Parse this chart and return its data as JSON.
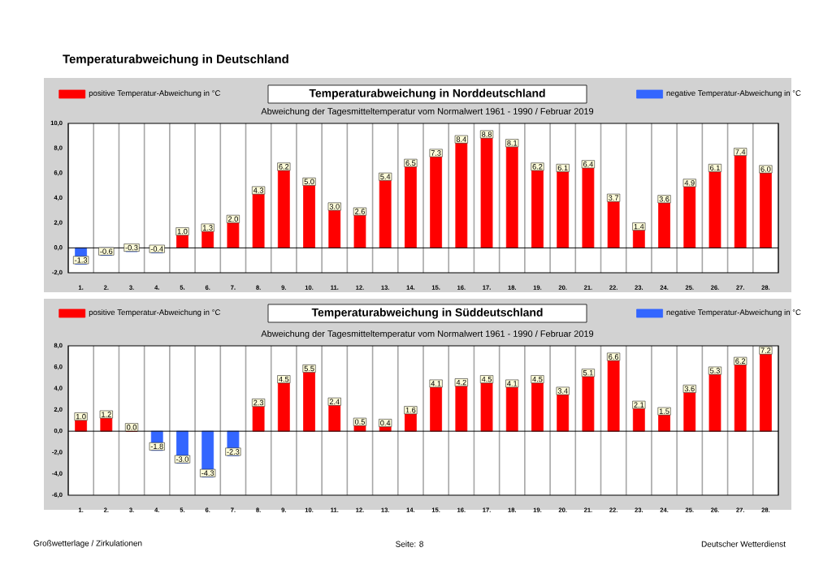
{
  "chart_data": [
    {
      "type": "bar",
      "title": "Temperaturabweichung in Norddeutschland",
      "subtitle": "Abweichung der Tagesmitteltemperatur vom Normalwert 1961 - 1990  /  Februar 2019",
      "annotations": [
        "Temperaturabweichung in Deutschland"
      ],
      "categories": [
        "1.",
        "2.",
        "3.",
        "4.",
        "5.",
        "6.",
        "7.",
        "8.",
        "9.",
        "10.",
        "11.",
        "12.",
        "13.",
        "14.",
        "15.",
        "16.",
        "17.",
        "18.",
        "19.",
        "20.",
        "21.",
        "22.",
        "23.",
        "24.",
        "25.",
        "26.",
        "27.",
        "28."
      ],
      "series": [
        {
          "name": "positive Temperatur-Abweichung in °C",
          "color": "#ff0000",
          "values": [
            null,
            null,
            null,
            null,
            1.0,
            1.3,
            2.0,
            4.3,
            6.2,
            5.0,
            3.0,
            2.6,
            5.4,
            6.5,
            7.3,
            8.4,
            8.8,
            8.1,
            6.2,
            6.1,
            6.4,
            3.7,
            1.4,
            3.6,
            4.9,
            6.1,
            7.4,
            6.0
          ],
          "value_labels": [
            null,
            null,
            null,
            null,
            "1.0",
            "1.3",
            "2.0",
            "4.3",
            "6.2",
            "5.0",
            "3.0",
            "2.6",
            "5.4",
            "6.5",
            "7.3",
            "8.4",
            "8.8",
            "8.1",
            "6.2",
            "6.1",
            "6.4",
            "3.7",
            "1.4",
            "3.6",
            "4.9",
            "6.1",
            "7.4",
            "6.0"
          ]
        },
        {
          "name": "negative Temperatur-Abweichung in °C",
          "color": "#3366ff",
          "values": [
            -1.3,
            -0.6,
            -0.3,
            -0.4,
            null,
            null,
            null,
            null,
            null,
            null,
            null,
            null,
            null,
            null,
            null,
            null,
            null,
            null,
            null,
            null,
            null,
            null,
            null,
            null,
            null,
            null,
            null,
            null
          ],
          "value_labels": [
            "-1.3",
            "-0.6",
            "-0.3",
            "-0.4",
            null,
            null,
            null,
            null,
            null,
            null,
            null,
            null,
            null,
            null,
            null,
            null,
            null,
            null,
            null,
            null,
            null,
            null,
            null,
            null,
            null,
            null,
            null,
            null
          ]
        }
      ],
      "ylim": [
        -2,
        10
      ],
      "yticks": [
        {
          "value": -2,
          "label": "-2,0"
        },
        {
          "value": 0,
          "label": "0,0"
        },
        {
          "value": 2,
          "label": "2,0"
        },
        {
          "value": 4,
          "label": "4,0"
        },
        {
          "value": 6,
          "label": "6,0"
        },
        {
          "value": 8,
          "label": "8,0"
        },
        {
          "value": 10,
          "label": "10,0"
        }
      ],
      "grid": "x",
      "legend": "top"
    },
    {
      "type": "bar",
      "title": "Temperaturabweichung in Süddeutschland",
      "subtitle": "Abweichung der Tagesmitteltemperatur vom Normalwert 1961 - 1990  /  Februar 2019",
      "annotations": [
        "Großwetterlage / Zirkulationen",
        "Seite: 8",
        "Deutscher Wetterdienst"
      ],
      "categories": [
        "1.",
        "2.",
        "3.",
        "4.",
        "5.",
        "6.",
        "7.",
        "8.",
        "9.",
        "10.",
        "11.",
        "12.",
        "13.",
        "14.",
        "15.",
        "16.",
        "17.",
        "18.",
        "19.",
        "20.",
        "21.",
        "22.",
        "23.",
        "24.",
        "25.",
        "26.",
        "27.",
        "28."
      ],
      "series": [
        {
          "name": "positive Temperatur-Abweichung in °C",
          "color": "#ff0000",
          "values": [
            1.0,
            1.2,
            0.0,
            null,
            null,
            null,
            null,
            2.3,
            4.5,
            5.5,
            2.4,
            0.5,
            0.4,
            1.6,
            4.1,
            4.2,
            4.5,
            4.1,
            4.5,
            3.4,
            5.1,
            6.6,
            2.1,
            1.5,
            3.6,
            5.3,
            6.2,
            7.2
          ],
          "value_labels": [
            "1.0",
            "1.2",
            "0.0",
            null,
            null,
            null,
            null,
            "2.3",
            "4.5",
            "5.5",
            "2.4",
            "0.5",
            "0.4",
            "1.6",
            "4.1",
            "4.2",
            "4.5",
            "4.1",
            "4.5",
            "3.4",
            "5.1",
            "6.6",
            "2.1",
            "1.5",
            "3.6",
            "5.3",
            "6.2",
            "7.2"
          ]
        },
        {
          "name": "negative Temperatur-Abweichung in °C",
          "color": "#3366ff",
          "values": [
            null,
            null,
            null,
            -1.8,
            -3.0,
            -4.3,
            -2.3,
            null,
            null,
            null,
            null,
            null,
            null,
            null,
            null,
            null,
            null,
            null,
            null,
            null,
            null,
            null,
            null,
            null,
            null,
            null,
            null,
            null
          ],
          "value_labels": [
            null,
            null,
            null,
            "-1.8",
            "-3.0",
            "-4.3",
            "-2.3",
            null,
            null,
            null,
            null,
            null,
            null,
            null,
            null,
            null,
            null,
            null,
            null,
            null,
            null,
            null,
            null,
            null,
            null,
            null,
            null,
            null
          ]
        }
      ],
      "ylim": [
        -6,
        8
      ],
      "yticks": [
        {
          "value": -6,
          "label": "-6,0"
        },
        {
          "value": -4,
          "label": "-4,0"
        },
        {
          "value": -2,
          "label": "-2,0"
        },
        {
          "value": 0,
          "label": "0,0"
        },
        {
          "value": 2,
          "label": "2,0"
        },
        {
          "value": 4,
          "label": "4,0"
        },
        {
          "value": 6,
          "label": "6,0"
        },
        {
          "value": 8,
          "label": "8,0"
        }
      ],
      "grid": "x",
      "legend": "top"
    }
  ]
}
